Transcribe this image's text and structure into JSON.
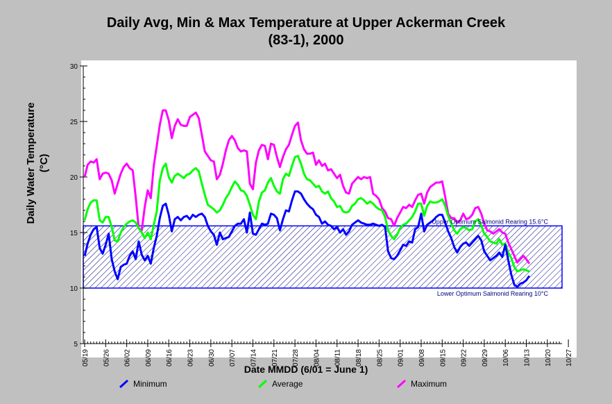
{
  "chart_data": {
    "type": "line",
    "title": "Daily Avg, Min & Max Temperature at Upper Ackerman Creek",
    "subtitle": "(83-1), 2000",
    "xlabel": "Date MMDD (6/01 = June 1)",
    "ylabel": "Daily Water Temperature",
    "ylabel_unit": "(°C)",
    "ylim": [
      5,
      30
    ],
    "yticks": [
      "5",
      "10",
      "15",
      "20",
      "25",
      "30"
    ],
    "xticks": [
      "05/19",
      "05/26",
      "06/02",
      "06/09",
      "06/16",
      "06/23",
      "06/30",
      "07/07",
      "07/14",
      "07/21",
      "07/28",
      "08/04",
      "08/11",
      "08/18",
      "08/25",
      "09/01",
      "09/08",
      "09/15",
      "09/22",
      "09/29",
      "10/06",
      "10/13",
      "10/20",
      "10/27"
    ],
    "xlim_days": [
      0,
      168
    ],
    "band": {
      "lower": 10,
      "upper": 15.6,
      "lower_label": "Lower Optimum Salmonid Rearing 10°C",
      "upper_label": "Upper Optimum Salmonid Rearing 15.6°C"
    },
    "series": [
      {
        "name": "Minimum",
        "color": "#0000ff",
        "values": [
          12.9,
          14,
          14.8,
          15.3,
          15.5,
          13.6,
          13.1,
          13.9,
          14.9,
          12.6,
          11.5,
          10.8,
          11.9,
          12.1,
          12.2,
          12.9,
          13.3,
          12.6,
          14.2,
          13,
          12.5,
          12.9,
          12.2,
          13.6,
          14.7,
          16.3,
          17.4,
          17.6,
          16.6,
          15.1,
          16.2,
          16.4,
          16.1,
          16.4,
          16.5,
          16.2,
          16.6,
          16.4,
          16.6,
          16.7,
          16.4,
          15.6,
          15.1,
          14.8,
          13.9,
          15,
          14.4,
          14.5,
          14.6,
          15.1,
          15.6,
          15.8,
          15.8,
          16.2,
          15,
          16.8,
          14.9,
          14.8,
          15.3,
          15.8,
          15.7,
          15.8,
          16.7,
          16.6,
          16.3,
          15.2,
          16.2,
          17,
          16.9,
          17.9,
          18.7,
          18.7,
          18.5,
          18,
          17.6,
          17.3,
          17.1,
          16.6,
          16.4,
          15.8,
          16,
          15.7,
          15.6,
          15.3,
          15.5,
          15,
          15.3,
          14.8,
          15.1,
          15.7,
          15.9,
          16.1,
          15.9,
          15.8,
          15.7,
          15.7,
          15.8,
          15.7,
          15.6,
          15.7,
          15.5,
          13.3,
          12.7,
          12.6,
          12.9,
          13.4,
          13.9,
          13.8,
          14.2,
          14.1,
          15.3,
          15.5,
          16.7,
          15.1,
          15.7,
          15.9,
          16.1,
          16.4,
          16.6,
          16.6,
          15.9,
          15.1,
          14.5,
          13.7,
          13.2,
          13.7,
          14,
          14.1,
          13.8,
          14.1,
          14.4,
          14.7,
          14.3,
          13.3,
          12.9,
          12.5,
          12.7,
          12.9,
          13.2,
          12.8,
          13.9,
          12.5,
          11.2,
          10.3,
          10.1,
          10.4,
          10.5,
          10.7,
          11.1
        ]
      },
      {
        "name": "Average",
        "color": "#00ff00",
        "values": [
          16.1,
          17.1,
          17.7,
          17.9,
          17.9,
          16.1,
          15.9,
          16.4,
          16.4,
          15.5,
          14.3,
          14.2,
          15,
          15.5,
          15.8,
          16,
          16.1,
          15.9,
          15.4,
          15,
          14.5,
          15,
          14.4,
          15.7,
          16.9,
          19.7,
          20.8,
          21.2,
          20,
          19.5,
          20.1,
          20.3,
          20.1,
          19.9,
          20.2,
          20.3,
          20.6,
          20.8,
          20.5,
          19.4,
          18.4,
          17.5,
          17.3,
          17.1,
          16.8,
          17,
          17.5,
          18.1,
          18.5,
          19.1,
          19.6,
          19.3,
          18.8,
          18.7,
          18.3,
          17.5,
          16.6,
          16.2,
          17.8,
          18.6,
          18.8,
          19.5,
          19.9,
          19.2,
          18.7,
          18.5,
          19.8,
          20.3,
          20.1,
          21,
          21.8,
          21.9,
          21.2,
          20.3,
          19.8,
          19.7,
          19.4,
          19.1,
          19.2,
          18.7,
          18.5,
          18.7,
          18.1,
          17.8,
          17.3,
          17.4,
          16.9,
          16.8,
          16.9,
          17.4,
          17.6,
          18,
          18.1,
          17.9,
          17.6,
          17.8,
          17.6,
          17.3,
          17.1,
          17,
          16.4,
          15.2,
          14.7,
          14.4,
          14.8,
          15.4,
          15.7,
          15.8,
          16.1,
          16.4,
          16.9,
          17.6,
          17.6,
          16.5,
          17.4,
          17.8,
          17.7,
          17.7,
          17.8,
          18,
          17.4,
          16.5,
          15.8,
          15.2,
          14.9,
          15.3,
          15.5,
          15.4,
          15.2,
          15.3,
          16,
          16.2,
          15.6,
          14.9,
          14.6,
          14.2,
          14.1,
          14,
          14.4,
          13.9,
          14,
          13.2,
          12.7,
          11.9,
          11.5,
          11.6,
          11.7,
          11.6,
          11.5
        ]
      },
      {
        "name": "Maximum",
        "color": "#ff00ff",
        "values": [
          20,
          21.1,
          21.4,
          21.3,
          21.6,
          19.8,
          20.3,
          20.4,
          20.3,
          19.7,
          18.5,
          19.4,
          20.3,
          20.9,
          21.2,
          20.8,
          20.6,
          18.2,
          15.4,
          15.2,
          17.3,
          18.8,
          18.1,
          21,
          22.8,
          24.7,
          26,
          26,
          25.1,
          23.5,
          24.6,
          25.2,
          24.7,
          24.6,
          24.6,
          25.4,
          25.6,
          25.8,
          25.3,
          23.8,
          22.3,
          21.9,
          21.5,
          21.4,
          19.8,
          20.2,
          21.2,
          22.4,
          23.3,
          23.7,
          23.3,
          22.6,
          22.3,
          22.4,
          22.3,
          19.4,
          18.9,
          21.3,
          22.4,
          22.9,
          22.8,
          21.6,
          23,
          22.9,
          21.8,
          20.9,
          21.8,
          22.5,
          22.9,
          23.8,
          24.6,
          24.9,
          23.3,
          22.5,
          22.1,
          22.1,
          22.2,
          21.1,
          21.5,
          21,
          21.2,
          20.6,
          20.7,
          20.3,
          19.9,
          20.2,
          19.2,
          18.6,
          18.5,
          19.4,
          19.7,
          20,
          19.8,
          20,
          19.9,
          20,
          18.5,
          18.3,
          18,
          17.2,
          16.9,
          16.3,
          16.2,
          15.6,
          16.3,
          16.8,
          17.3,
          17.2,
          17.5,
          17.3,
          17.9,
          18.4,
          18.5,
          17.6,
          18.6,
          19.1,
          19.3,
          19.5,
          19.5,
          19.6,
          18.2,
          16.7,
          16.3,
          16.3,
          15.9,
          16.1,
          16.7,
          16.2,
          16.3,
          16.6,
          17.2,
          17.3,
          16.7,
          15.8,
          15.2,
          15.1,
          14.9,
          15.1,
          15.3,
          15,
          14.9,
          14.1,
          13.5,
          12.9,
          12.3,
          12.6,
          12.9,
          12.6,
          12.2
        ]
      }
    ],
    "legend_position": "bottom",
    "grid": false
  }
}
